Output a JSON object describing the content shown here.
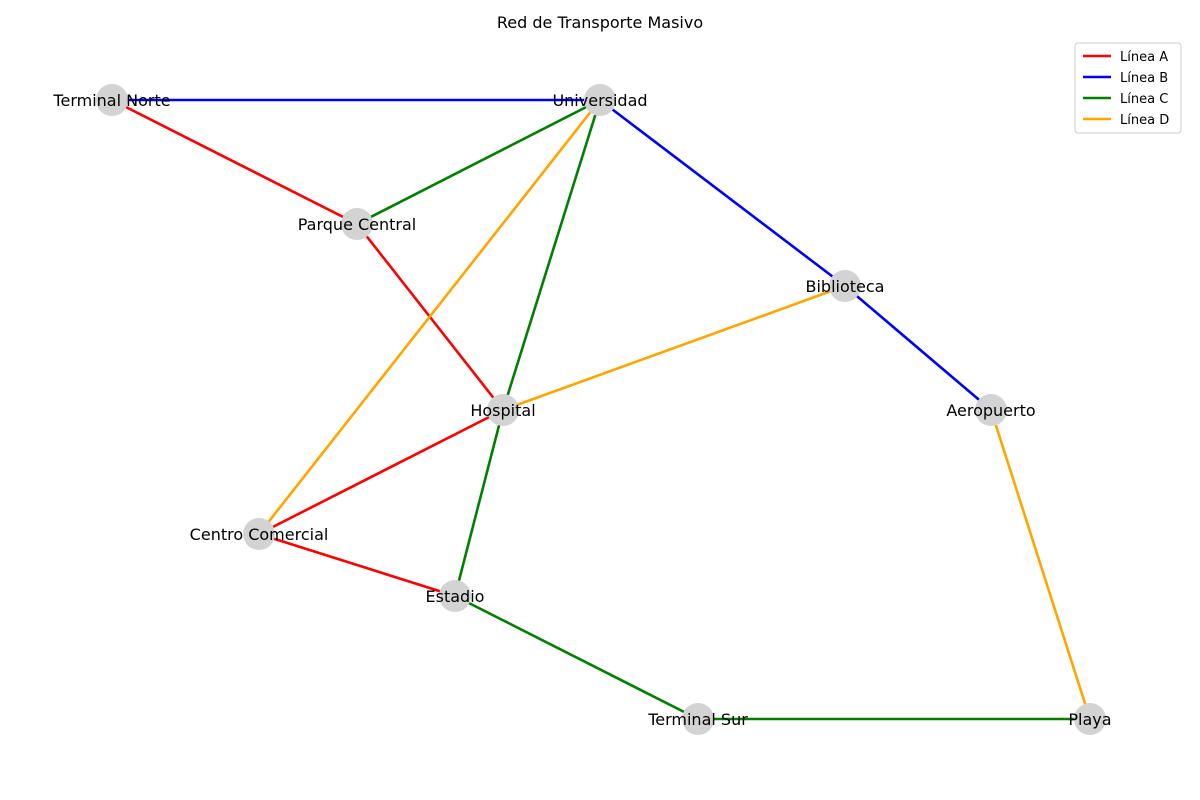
{
  "title": "Red de Transporte Masivo",
  "lines": [
    {
      "id": "A",
      "name": "Línea A",
      "color": "#ff0000"
    },
    {
      "id": "B",
      "name": "Línea B",
      "color": "#0000ff"
    },
    {
      "id": "C",
      "name": "Línea C",
      "color": "#008000"
    },
    {
      "id": "D",
      "name": "Línea D",
      "color": "#ffa500"
    }
  ],
  "stations": [
    {
      "id": "terminal_norte",
      "name": "Terminal Norte"
    },
    {
      "id": "universidad",
      "name": "Universidad"
    },
    {
      "id": "parque_central",
      "name": "Parque Central"
    },
    {
      "id": "biblioteca",
      "name": "Biblioteca"
    },
    {
      "id": "hospital",
      "name": "Hospital"
    },
    {
      "id": "aeropuerto",
      "name": "Aeropuerto"
    },
    {
      "id": "centro_comercial",
      "name": "Centro Comercial"
    },
    {
      "id": "estadio",
      "name": "Estadio"
    },
    {
      "id": "terminal_sur",
      "name": "Terminal Sur"
    },
    {
      "id": "playa",
      "name": "Playa"
    }
  ],
  "connections": [
    {
      "from": "terminal_norte",
      "to": "parque_central",
      "line": "A"
    },
    {
      "from": "parque_central",
      "to": "hospital",
      "line": "A"
    },
    {
      "from": "hospital",
      "to": "centro_comercial",
      "line": "A"
    },
    {
      "from": "centro_comercial",
      "to": "estadio",
      "line": "A"
    },
    {
      "from": "terminal_norte",
      "to": "universidad",
      "line": "B"
    },
    {
      "from": "universidad",
      "to": "biblioteca",
      "line": "B"
    },
    {
      "from": "biblioteca",
      "to": "aeropuerto",
      "line": "B"
    },
    {
      "from": "parque_central",
      "to": "universidad",
      "line": "C"
    },
    {
      "from": "universidad",
      "to": "hospital",
      "line": "C"
    },
    {
      "from": "hospital",
      "to": "estadio",
      "line": "C"
    },
    {
      "from": "estadio",
      "to": "terminal_sur",
      "line": "C"
    },
    {
      "from": "terminal_sur",
      "to": "playa",
      "line": "C"
    },
    {
      "from": "centro_comercial",
      "to": "universidad",
      "line": "D"
    },
    {
      "from": "hospital",
      "to": "biblioteca",
      "line": "D"
    },
    {
      "from": "aeropuerto",
      "to": "playa",
      "line": "D"
    }
  ],
  "node_color": "#d3d3d3"
}
